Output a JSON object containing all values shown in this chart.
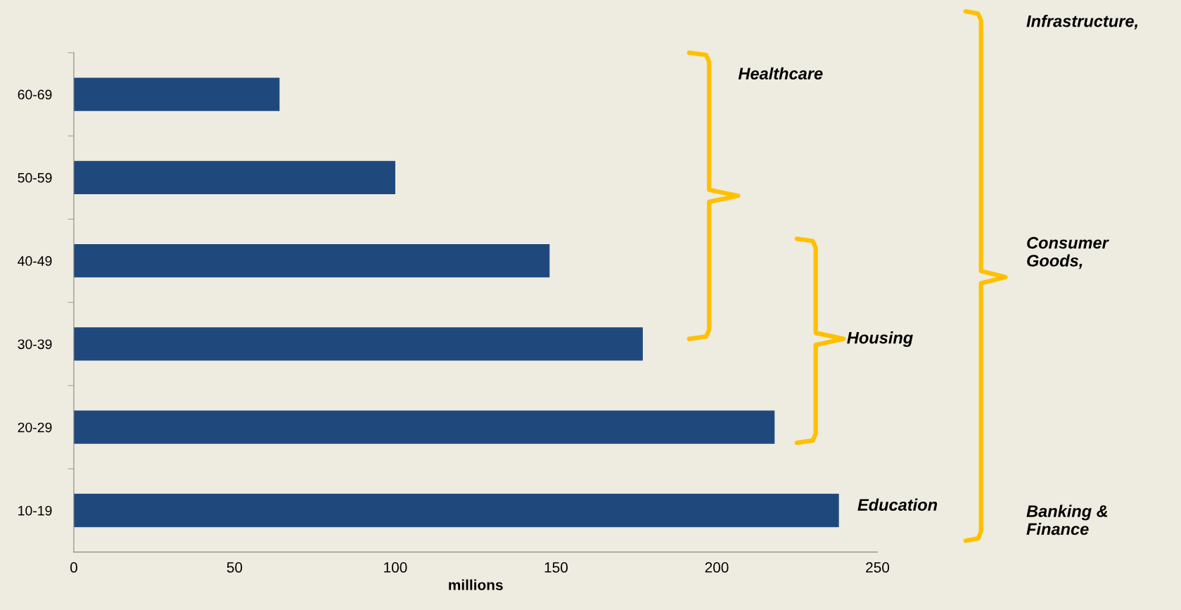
{
  "chart_data": {
    "type": "bar",
    "orientation": "horizontal",
    "xlabel": "millions",
    "categories": [
      "60-69",
      "50-59",
      "40-49",
      "30-39",
      "20-29",
      "10-19"
    ],
    "values": [
      64,
      100,
      148,
      177,
      218,
      238
    ],
    "color": "#1f497d",
    "xlim": [
      0,
      250
    ],
    "xticks": [
      0,
      50,
      100,
      150,
      200,
      250
    ],
    "grid": false,
    "legend": false,
    "annotations": [
      "Healthcare",
      "Housing",
      "Education",
      "Infrastructure,",
      "Consumer Goods,",
      "Banking & Finance"
    ]
  }
}
